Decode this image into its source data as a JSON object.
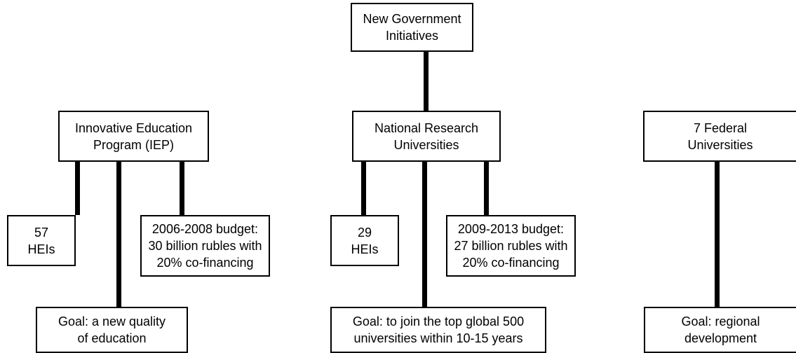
{
  "root": {
    "lines": [
      "New Government",
      "Initiatives"
    ]
  },
  "programs": [
    {
      "title": [
        "Innovative Education",
        "Program (IEP)"
      ],
      "heis": [
        "57",
        "HEIs"
      ],
      "budget": [
        "2006-2008 budget:",
        "30 billion rubles with",
        "20% co-financing"
      ],
      "goal": [
        "Goal: a new quality",
        "of education"
      ]
    },
    {
      "title": [
        "National Research",
        "Universities"
      ],
      "heis": [
        "29",
        "HEIs"
      ],
      "budget": [
        "2009-2013 budget:",
        "27 billion rubles with",
        "20% co-financing"
      ],
      "goal": [
        "Goal: to join the top global 500",
        "universities within 10-15 years"
      ]
    },
    {
      "title": [
        "7 Federal",
        "Universities"
      ],
      "goal": [
        "Goal: regional",
        "development"
      ]
    }
  ]
}
